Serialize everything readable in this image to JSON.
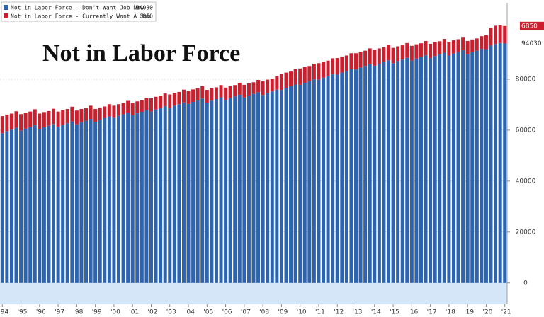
{
  "chart_data": {
    "type": "stacked-bar",
    "title": "Not in Labor Force",
    "categories": [
      "'94",
      null,
      null,
      null,
      "'95",
      null,
      null,
      null,
      "'96",
      null,
      null,
      null,
      "'97",
      null,
      null,
      null,
      "'98",
      null,
      null,
      null,
      "'99",
      null,
      null,
      null,
      "'00",
      null,
      null,
      null,
      "'01",
      null,
      null,
      null,
      "'02",
      null,
      null,
      null,
      "'03",
      null,
      null,
      null,
      "'04",
      null,
      null,
      null,
      "'05",
      null,
      null,
      null,
      "'06",
      null,
      null,
      null,
      "'07",
      null,
      null,
      null,
      "'08",
      null,
      null,
      null,
      "'09",
      null,
      null,
      null,
      "'10",
      null,
      null,
      null,
      "'11",
      null,
      null,
      null,
      "'12",
      null,
      null,
      null,
      "'13",
      null,
      null,
      null,
      "'14",
      null,
      null,
      null,
      "'15",
      null,
      null,
      null,
      "'16",
      null,
      null,
      null,
      "'17",
      null,
      null,
      null,
      "'18",
      null,
      null,
      null,
      "'19",
      null,
      null,
      null,
      "'20",
      null,
      null,
      null,
      "'21"
    ],
    "series": [
      {
        "name": "Not in Labor Force - Don't Want Job Now",
        "color": "#2e64ae",
        "values": [
          58800,
          59600,
          60200,
          60900,
          59800,
          60600,
          61200,
          61900,
          60300,
          61100,
          61700,
          62400,
          61300,
          62100,
          62700,
          63400,
          62300,
          63100,
          63700,
          64400,
          63300,
          64100,
          64700,
          65400,
          64800,
          65600,
          66200,
          66900,
          65800,
          66600,
          67200,
          67900,
          67300,
          68100,
          68700,
          69400,
          68800,
          69600,
          70200,
          70900,
          70300,
          71100,
          71700,
          72400,
          70800,
          71600,
          72200,
          72900,
          71800,
          72600,
          73200,
          73900,
          72800,
          73600,
          74200,
          74900,
          73800,
          74600,
          75200,
          75900,
          75800,
          76600,
          77200,
          77900,
          77800,
          78600,
          79200,
          79900,
          79800,
          80600,
          81200,
          81900,
          81800,
          82600,
          83200,
          83900,
          83800,
          84600,
          85200,
          85900,
          85300,
          86100,
          86700,
          87400,
          86300,
          87100,
          87700,
          88400,
          87300,
          88100,
          88700,
          89400,
          88300,
          89100,
          89700,
          90400,
          89300,
          90100,
          90700,
          91400,
          89800,
          90600,
          91200,
          91900,
          91800,
          93200,
          93800,
          94200,
          94030
        ]
      },
      {
        "name": "Not in Labor Force - Currently Want A Job",
        "color": "#c8202f",
        "values": [
          6700,
          6500,
          6300,
          6500,
          6500,
          6300,
          6100,
          6300,
          6200,
          6000,
          5800,
          6000,
          6000,
          5800,
          5600,
          5800,
          5400,
          5200,
          5000,
          5200,
          5000,
          4800,
          4600,
          4800,
          4800,
          4600,
          4400,
          4600,
          4900,
          4700,
          4500,
          4700,
          5200,
          5000,
          4800,
          5000,
          5200,
          5000,
          4800,
          5000,
          5100,
          4900,
          4700,
          4900,
          5000,
          4800,
          4600,
          4800,
          4900,
          4700,
          4500,
          4700,
          5000,
          4800,
          4600,
          4800,
          5400,
          5200,
          5000,
          5200,
          6200,
          6000,
          5800,
          6000,
          6400,
          6200,
          6000,
          6200,
          6500,
          6300,
          6100,
          6300,
          6500,
          6300,
          6100,
          6300,
          6400,
          6200,
          6000,
          6200,
          6200,
          6000,
          5800,
          6000,
          6000,
          5800,
          5600,
          5800,
          5800,
          5600,
          5400,
          5600,
          5600,
          5400,
          5200,
          5400,
          5400,
          5200,
          5000,
          5200,
          5200,
          5000,
          4800,
          5000,
          5500,
          7000,
          7200,
          7000,
          6850
        ]
      }
    ],
    "ylim": [
      -8400,
      110000
    ],
    "yticks": [
      0,
      20000,
      40000,
      60000,
      80000
    ],
    "grid": true
  }
}
